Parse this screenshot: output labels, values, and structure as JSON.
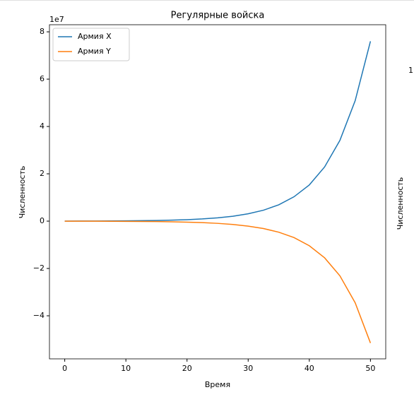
{
  "chart_data": {
    "type": "line",
    "title": "Регулярные войска",
    "xlabel": "Время",
    "ylabel": "Численность",
    "y_offset_label": "1e7",
    "x": [
      0,
      2.5,
      5,
      7.5,
      10,
      12.5,
      15,
      17.5,
      20,
      22.5,
      25,
      27.5,
      30,
      32.5,
      35,
      37.5,
      40,
      42.5,
      45,
      47.5,
      50
    ],
    "series": [
      {
        "name": "Армия X",
        "color": "#1f77b4",
        "values": [
          0.003,
          0.004,
          0.006,
          0.008,
          0.013,
          0.019,
          0.028,
          0.042,
          0.062,
          0.093,
          0.139,
          0.207,
          0.31,
          0.462,
          0.689,
          1.03,
          1.53,
          2.29,
          3.41,
          5.09,
          7.6
        ]
      },
      {
        "name": "Армия Y",
        "color": "#ff7f0e",
        "values": [
          -0.002,
          -0.003,
          -0.004,
          -0.006,
          -0.009,
          -0.013,
          -0.019,
          -0.028,
          -0.042,
          -0.063,
          -0.094,
          -0.14,
          -0.21,
          -0.313,
          -0.467,
          -0.695,
          -1.04,
          -1.55,
          -2.31,
          -3.45,
          -5.15
        ]
      }
    ],
    "xlim": [
      -2.5,
      52.5
    ],
    "xticks": [
      0,
      10,
      20,
      30,
      40,
      50
    ],
    "ylim": [
      -5.82,
      8.3
    ],
    "yticks": [
      {
        "value": -4,
        "label": "−4"
      },
      {
        "value": -2,
        "label": "−2"
      },
      0,
      2,
      4,
      6,
      8
    ],
    "legend": "upper left",
    "grid": false
  },
  "cropped_chart": {
    "y_offset_label": "1",
    "ylabel": "Численность"
  }
}
